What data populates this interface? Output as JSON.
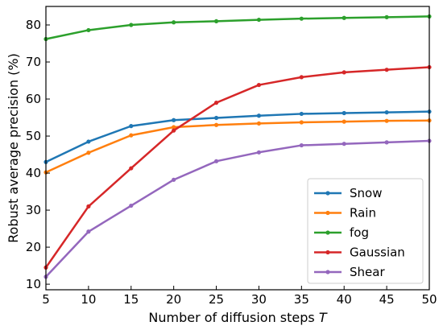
{
  "chart_data": {
    "type": "line",
    "xlabel": "Number of diffusion steps",
    "xlabel_italic": "T",
    "ylabel": "Robust average precision (%)",
    "x": [
      5,
      10,
      15,
      20,
      25,
      30,
      35,
      40,
      45,
      50
    ],
    "xlim": [
      5,
      50
    ],
    "ylim": [
      8.5,
      85
    ],
    "xticks": [
      "5",
      "10",
      "15",
      "20",
      "25",
      "30",
      "35",
      "40",
      "45",
      "50"
    ],
    "yticks": [
      "10",
      "20",
      "30",
      "40",
      "50",
      "60",
      "70",
      "80"
    ],
    "ytick_values": [
      10,
      20,
      30,
      40,
      50,
      60,
      70,
      80
    ],
    "grid": false,
    "legend_position": "bottom-right",
    "series": [
      {
        "name": "Snow",
        "color": "#1f77b4",
        "values": [
          43.0,
          48.5,
          52.7,
          54.3,
          54.9,
          55.5,
          56.0,
          56.2,
          56.4,
          56.6
        ]
      },
      {
        "name": "Rain",
        "color": "#ff7f0e",
        "values": [
          40.2,
          45.5,
          50.2,
          52.4,
          53.0,
          53.4,
          53.7,
          53.9,
          54.1,
          54.2
        ]
      },
      {
        "name": "fog",
        "color": "#2ca02c",
        "values": [
          76.2,
          78.6,
          80.0,
          80.7,
          81.0,
          81.4,
          81.7,
          81.9,
          82.1,
          82.3
        ]
      },
      {
        "name": "Gaussian",
        "color": "#d62728",
        "values": [
          14.5,
          31.0,
          41.3,
          51.5,
          59.0,
          63.8,
          65.9,
          67.2,
          67.9,
          68.6
        ]
      },
      {
        "name": "Shear",
        "color": "#9467bd",
        "values": [
          12.0,
          24.2,
          31.2,
          38.2,
          43.2,
          45.6,
          47.5,
          47.9,
          48.3,
          48.7
        ]
      }
    ]
  }
}
